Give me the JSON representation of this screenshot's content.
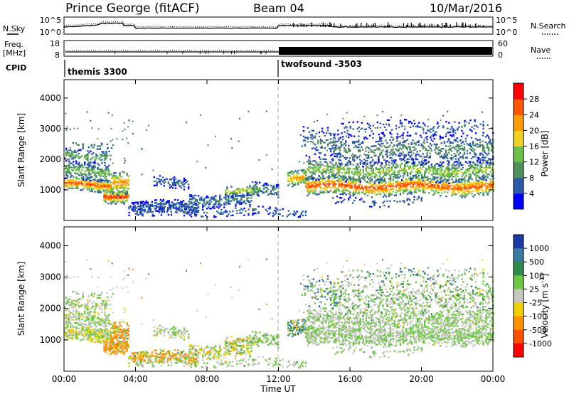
{
  "header": {
    "station": "Prince George (fitACF)",
    "beam": "Beam 04",
    "date": "10/Mar/2016"
  },
  "strip_noise": {
    "left_label": "N.Sky",
    "right_label": "N.Search",
    "left_ticks": [
      "10^5",
      "10^0"
    ],
    "right_ticks": [
      "10^5",
      "10^0"
    ]
  },
  "strip_freq": {
    "left_label_1": "Freq.",
    "left_label_2": "[MHz]",
    "right_label": "Nave",
    "left_ticks": [
      "18",
      "8"
    ],
    "right_ticks": [
      "60",
      "0"
    ]
  },
  "cpid": {
    "label": "CPID",
    "segments": [
      {
        "name": "themis 3300",
        "start_hour": 0
      },
      {
        "name": "twofsound -3503",
        "start_hour": 12
      }
    ]
  },
  "chart_data": [
    {
      "type": "heatmap",
      "panel": "power",
      "ylabel": "Slant Range [km]",
      "y_ticks": [
        1000,
        2000,
        3000,
        4000
      ],
      "ylim": [
        0,
        4600
      ],
      "x_ticks_hours": [
        0,
        4,
        8,
        12,
        16,
        20,
        24
      ],
      "colorbar": {
        "label": "Power [dB]",
        "ticks": [
          "4",
          "8",
          "12",
          "16",
          "20",
          "24",
          "28"
        ],
        "colors": [
          "#0000ff",
          "#2a5aa8",
          "#4e8f5a",
          "#6cc04a",
          "#f0d020",
          "#ff9a00",
          "#ff5500",
          "#ff0000"
        ]
      }
    },
    {
      "type": "heatmap",
      "panel": "velocity",
      "ylabel": "Slant Range [km]",
      "y_ticks": [
        1000,
        2000,
        3000,
        4000
      ],
      "ylim": [
        0,
        4600
      ],
      "x_ticks_hours": [
        0,
        4,
        8,
        12,
        16,
        20,
        24
      ],
      "colorbar": {
        "label": "Velocity [m s",
        "label_sup": "-1",
        "label_end": "]",
        "ticks": [
          "1000",
          "500",
          "100",
          "25",
          "-25",
          "-100",
          "-500",
          "-1000"
        ],
        "colors": [
          "#1a3aa8",
          "#3a7aa0",
          "#2e8a4a",
          "#6cc840",
          "#c8c8c0",
          "#f0d000",
          "#ff9000",
          "#ff5000",
          "#ff0000"
        ]
      }
    }
  ],
  "x_axis": {
    "ticks": [
      "00:00",
      "04:00",
      "08:00",
      "12:00",
      "16:00",
      "20:00",
      "00:00"
    ],
    "label": "Time UT"
  },
  "palette": {
    "grey_scatter": "#c6c6c0",
    "axis": "#000000",
    "divider": "#aaaaaa"
  }
}
